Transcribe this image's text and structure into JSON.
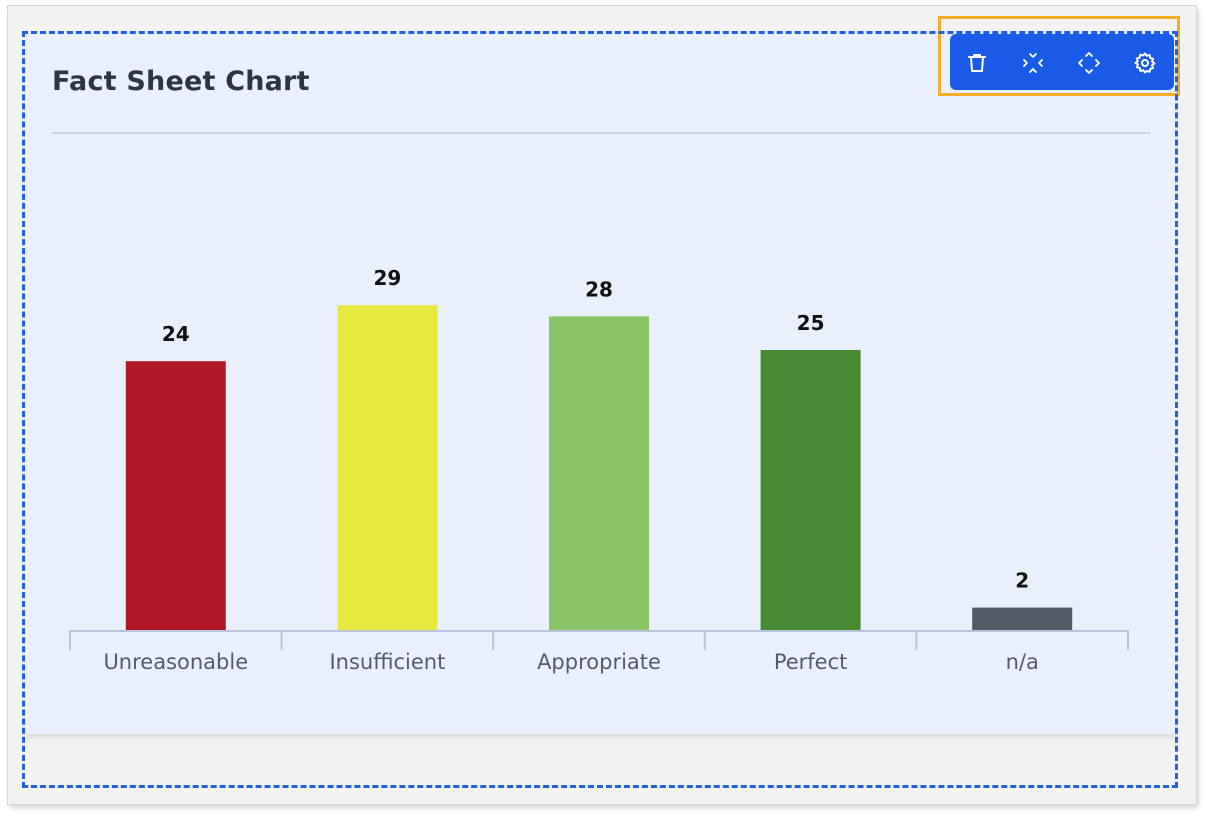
{
  "widget": {
    "title": "Fact Sheet Chart"
  },
  "toolbar": {
    "tools": [
      {
        "name": "delete",
        "icon": "trash-icon"
      },
      {
        "name": "collapse",
        "icon": "collapse-icon"
      },
      {
        "name": "expand",
        "icon": "expand-icon"
      },
      {
        "name": "settings",
        "icon": "gear-icon"
      }
    ],
    "background": "#1a5ae6",
    "highlight_color": "#f5ad2a"
  },
  "selection_color": "#1f5fe0",
  "chart_data": {
    "type": "bar",
    "categories": [
      "Unreasonable",
      "Insufficient",
      "Appropriate",
      "Perfect",
      "n/a"
    ],
    "values": [
      24,
      29,
      28,
      25,
      2
    ],
    "colors": [
      "#b01826",
      "#e8e840",
      "#88c566",
      "#468a32",
      "#525a66"
    ],
    "data_labels": [
      "24",
      "29",
      "28",
      "25",
      "2"
    ],
    "grid": false,
    "legend": false
  }
}
